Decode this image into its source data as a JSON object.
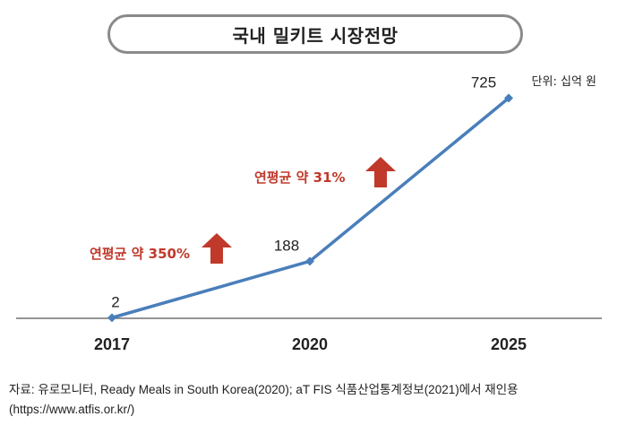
{
  "title": "국내 밀키트 시장전망",
  "unit_note": "단위: 십억 원",
  "chart_data": {
    "type": "line",
    "categories": [
      "2017",
      "2020",
      "2025"
    ],
    "values": [
      2,
      188,
      725
    ],
    "data_labels": [
      "2",
      "188",
      "725"
    ],
    "ylim": [
      0,
      800
    ],
    "grid": false,
    "legend": "none",
    "series_color": "#4a7ebb",
    "annotations": [
      {
        "text": "연평균 약 350%",
        "color": "#c0392b",
        "arrow": "up",
        "between": [
          "2017",
          "2020"
        ]
      },
      {
        "text": "연평균 약 31%",
        "color": "#c0392b",
        "arrow": "up",
        "between": [
          "2020",
          "2025"
        ]
      }
    ]
  },
  "source_line1": "자료: 유로모니터, Ready Meals in South Korea(2020); aT FIS 식품산업통계정보(2021)에서 재인용",
  "source_line2": "(https://www.atfis.or.kr/)"
}
